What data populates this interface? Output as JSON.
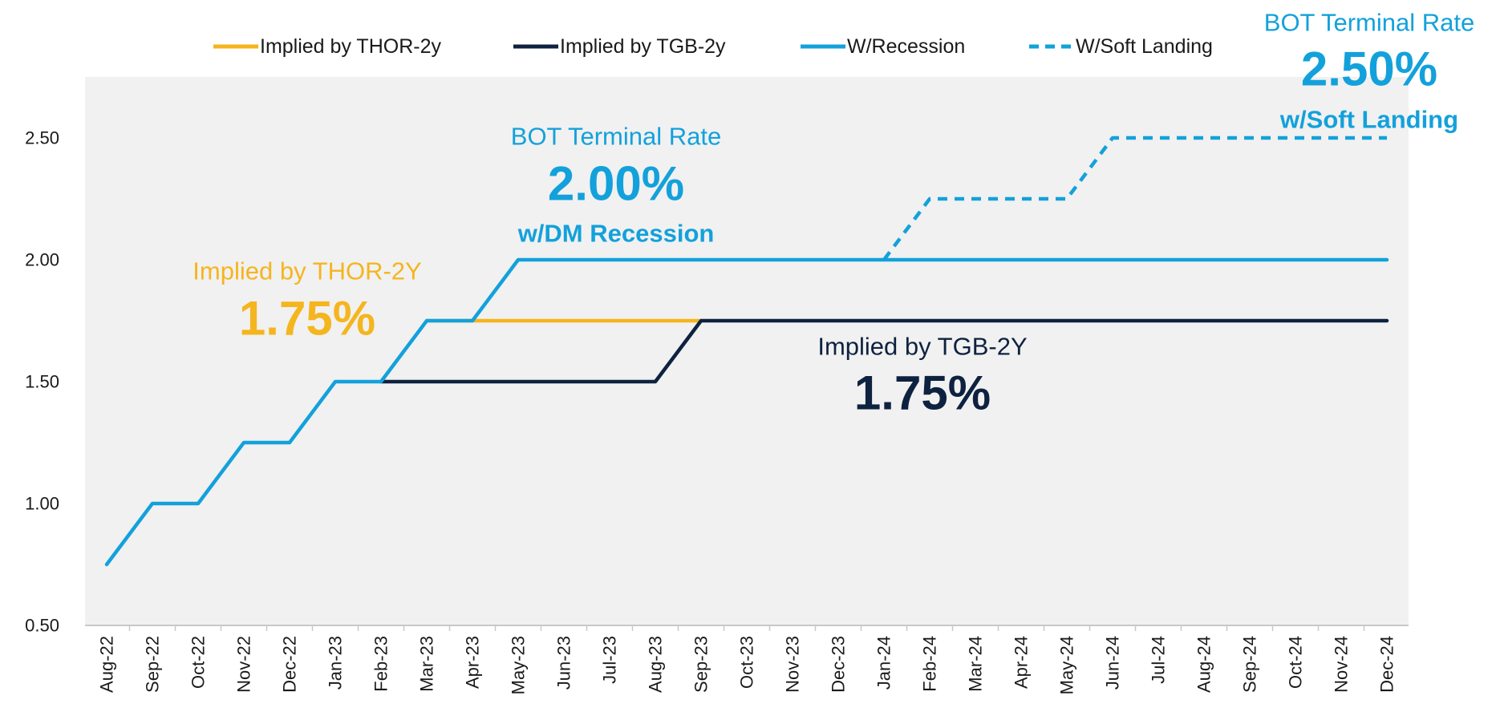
{
  "chart_data": {
    "type": "line",
    "title": "",
    "xlabel": "",
    "ylabel": "",
    "ylim": [
      0.5,
      2.75
    ],
    "yticks": [
      "0.50",
      "1.00",
      "1.50",
      "2.00",
      "2.50"
    ],
    "grid": false,
    "legend_position": "top",
    "categories": [
      "Aug-22",
      "Sep-22",
      "Oct-22",
      "Nov-22",
      "Dec-22",
      "Jan-23",
      "Feb-23",
      "Mar-23",
      "Apr-23",
      "May-23",
      "Jun-23",
      "Jul-23",
      "Aug-23",
      "Sep-23",
      "Oct-23",
      "Nov-23",
      "Dec-23",
      "Jan-24",
      "Feb-24",
      "Mar-24",
      "Apr-24",
      "May-24",
      "Jun-24",
      "Jul-24",
      "Aug-24",
      "Sep-24",
      "Oct-24",
      "Nov-24",
      "Dec-24"
    ],
    "series": [
      {
        "name": "Implied by THOR-2y",
        "color": "#F5B51E",
        "style": "solid",
        "values": [
          null,
          null,
          null,
          null,
          null,
          null,
          null,
          1.75,
          1.75,
          1.75,
          1.75,
          1.75,
          1.75,
          1.75,
          null,
          null,
          null,
          null,
          null,
          null,
          null,
          null,
          null,
          null,
          null,
          null,
          null,
          null,
          null
        ]
      },
      {
        "name": "Implied by TGB-2y",
        "color": "#0E2240",
        "style": "solid",
        "values": [
          null,
          null,
          null,
          null,
          null,
          null,
          1.5,
          1.5,
          1.5,
          1.5,
          1.5,
          1.5,
          1.5,
          1.75,
          1.75,
          1.75,
          1.75,
          1.75,
          1.75,
          1.75,
          1.75,
          1.75,
          1.75,
          1.75,
          1.75,
          1.75,
          1.75,
          1.75,
          1.75
        ]
      },
      {
        "name": "W/Recession",
        "color": "#13A1DB",
        "style": "solid",
        "values": [
          0.75,
          1.0,
          1.0,
          1.25,
          1.25,
          1.5,
          1.5,
          1.75,
          1.75,
          2.0,
          2.0,
          2.0,
          2.0,
          2.0,
          2.0,
          2.0,
          2.0,
          2.0,
          2.0,
          2.0,
          2.0,
          2.0,
          2.0,
          2.0,
          2.0,
          2.0,
          2.0,
          2.0,
          2.0
        ]
      },
      {
        "name": "W/Soft Landing",
        "color": "#13A1DB",
        "style": "dashed",
        "values": [
          null,
          null,
          null,
          null,
          null,
          null,
          null,
          null,
          null,
          null,
          null,
          null,
          null,
          null,
          null,
          null,
          null,
          2.0,
          2.25,
          2.25,
          2.25,
          2.25,
          2.5,
          2.5,
          2.5,
          2.5,
          2.5,
          2.5,
          2.5
        ]
      }
    ],
    "annotations": [
      {
        "id": "bot-recession",
        "label": "BOT Terminal Rate",
        "value": "2.00%",
        "sub": "w/DM Recession",
        "color": "#13A1DB"
      },
      {
        "id": "thor",
        "label": "Implied by THOR-2Y",
        "value": "1.75%",
        "sub": "",
        "color": "#F5B51E"
      },
      {
        "id": "tgb",
        "label": "Implied by TGB-2Y",
        "value": "1.75%",
        "sub": "",
        "color": "#0E2240"
      },
      {
        "id": "bot-soft",
        "label": "BOT Terminal Rate",
        "value": "2.50%",
        "sub": "w/Soft Landing",
        "color": "#13A1DB"
      }
    ]
  },
  "colors": {
    "plot_background": "#F1F1F1",
    "axis": "#C8C8C8",
    "text": "#1a1a1a"
  }
}
